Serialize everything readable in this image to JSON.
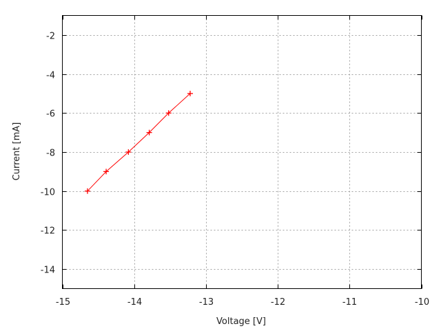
{
  "chart_data": {
    "type": "line",
    "title": "",
    "xlabel": "Voltage [V]",
    "ylabel": "Current [mA]",
    "xlim": [
      -15,
      -10
    ],
    "ylim": [
      -15,
      -1
    ],
    "xticks": [
      -15,
      -14,
      -13,
      -12,
      -11,
      -10
    ],
    "yticks": [
      -14,
      -12,
      -10,
      -8,
      -6,
      -4,
      -2
    ],
    "grid": true,
    "marker": "+",
    "color": "#ff0000",
    "x": [
      -14.65,
      -14.39,
      -14.08,
      -13.79,
      -13.52,
      -13.22
    ],
    "y": [
      -10,
      -9,
      -8,
      -7,
      -6,
      -5
    ]
  }
}
